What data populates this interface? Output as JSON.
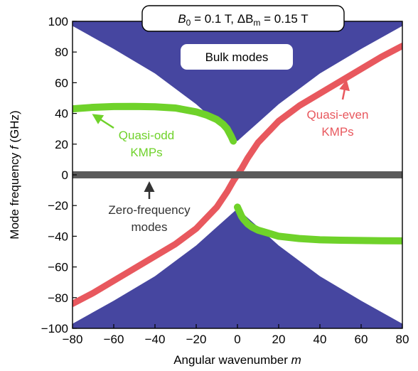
{
  "chart_data": {
    "type": "line",
    "xlabel": "Angular wavenumber",
    "xlabel_var": "m",
    "ylabel": "Mode frequency",
    "ylabel_var": "f",
    "ylabel_unit": "(GHz)",
    "xlim": [
      -80,
      80
    ],
    "ylim": [
      -100,
      100
    ],
    "xticks": [
      -80,
      -60,
      -40,
      -20,
      0,
      20,
      40,
      60,
      80
    ],
    "yticks": [
      -100,
      -80,
      -60,
      -40,
      -20,
      0,
      20,
      40,
      60,
      80,
      100
    ],
    "grid": false,
    "param_box": {
      "b0_sym": "B",
      "b0_sub": "0",
      "b0_val": " = 0.1 T, ",
      "dbm_sym": "ΔB",
      "dbm_sub": "m",
      "dbm_val": " = 0.15 T"
    },
    "bulk_region": {
      "label": "Bulk modes",
      "color": "#4646a0",
      "upper_edge": {
        "x": [
          -80,
          -60,
          -40,
          -20,
          -10,
          -5,
          0,
          5,
          10,
          20,
          40,
          60,
          80
        ],
        "y": [
          97,
          82,
          66,
          46,
          34,
          28,
          22,
          28,
          34,
          46,
          66,
          82,
          97
        ]
      },
      "lower_edge": {
        "x": [
          -80,
          -60,
          -40,
          -20,
          -10,
          -5,
          0,
          5,
          10,
          20,
          40,
          60,
          80
        ],
        "y": [
          -97,
          -82,
          -66,
          -46,
          -34,
          -28,
          -22,
          -28,
          -34,
          -46,
          -66,
          -82,
          -97
        ]
      }
    },
    "series": [
      {
        "name": "Quasi-even KMPs",
        "label_lines": [
          "Quasi-even",
          "KMPs"
        ],
        "color": "#e8585e",
        "x": [
          -80,
          -70,
          -60,
          -50,
          -40,
          -30,
          -20,
          -10,
          -5,
          -2,
          0,
          2,
          5,
          10,
          20,
          30,
          40,
          50,
          60,
          70,
          80
        ],
        "y": [
          -84,
          -77,
          -69,
          -61,
          -53,
          -45,
          -35,
          -21,
          -11,
          -4,
          0,
          4,
          11,
          21,
          35,
          45,
          53,
          61,
          69,
          77,
          84
        ]
      },
      {
        "name": "Quasi-odd KMPs",
        "label_lines": [
          "Quasi-odd",
          "KMPs"
        ],
        "color": "#6fd22a",
        "branches": [
          {
            "x": [
              -80,
              -70,
              -60,
              -50,
              -40,
              -30,
              -20,
              -15,
              -10,
              -7,
              -5,
              -3,
              -2
            ],
            "y": [
              43,
              44,
              44.5,
              44.6,
              44.3,
              43.5,
              41,
              39,
              36,
              33,
              30,
              25,
              22
            ]
          },
          {
            "x": [
              0,
              1,
              2,
              3,
              5,
              7,
              10,
              15,
              20,
              30,
              40,
              50,
              60,
              70,
              80
            ],
            "y": [
              -21,
              -24,
              -27,
              -29,
              -32,
              -34,
              -36,
              -38,
              -40,
              -41.5,
              -42.3,
              -42.6,
              -42.8,
              -42.9,
              -43
            ]
          }
        ]
      },
      {
        "name": "Zero-frequency modes",
        "label_lines": [
          "Zero-frequency",
          "modes"
        ],
        "color": "#5a5a5a",
        "x": [
          -80,
          80
        ],
        "y": [
          0,
          0
        ]
      }
    ]
  }
}
